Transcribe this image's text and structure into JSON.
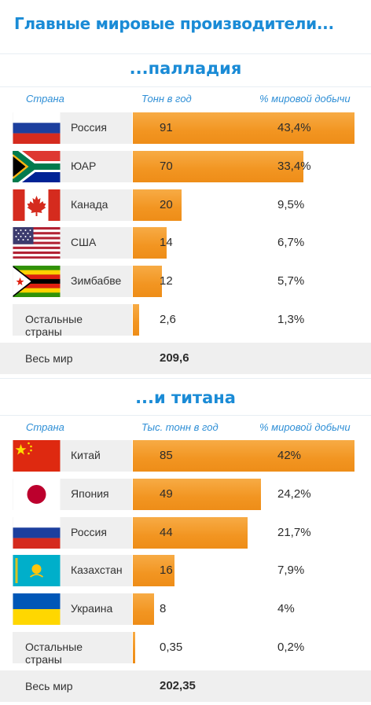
{
  "title": "Главные мировые производители...",
  "chart_data": [
    {
      "type": "table",
      "title": "...палладия",
      "columns": [
        "Страна",
        "Тонн в год",
        "% мировой добычи"
      ],
      "rows": [
        {
          "country": "Россия",
          "value": 91,
          "value_text": "91",
          "share": 43.4,
          "share_text": "43,4%",
          "flag": "flag-russia"
        },
        {
          "country": "ЮАР",
          "value": 70,
          "value_text": "70",
          "share": 33.4,
          "share_text": "33,4%",
          "flag": "flag-south-africa"
        },
        {
          "country": "Канада",
          "value": 20,
          "value_text": "20",
          "share": 9.5,
          "share_text": "9,5%",
          "flag": "flag-canada"
        },
        {
          "country": "США",
          "value": 14,
          "value_text": "14",
          "share": 6.7,
          "share_text": "6,7%",
          "flag": "flag-usa"
        },
        {
          "country": "Зимбабве",
          "value": 12,
          "value_text": "12",
          "share": 5.7,
          "share_text": "5,7%",
          "flag": "flag-zimbabwe"
        },
        {
          "country": "Остальные страны",
          "value": 2.6,
          "value_text": "2,6",
          "share": 1.3,
          "share_text": "1,3%",
          "flag": ""
        }
      ],
      "total_label": "Весь мир",
      "total_value": "209,6",
      "bar_max": 91,
      "bar_color": "#f29521"
    },
    {
      "type": "table",
      "title": "...и титана",
      "columns": [
        "Страна",
        "Тыс. тонн в год",
        "% мировой добычи"
      ],
      "rows": [
        {
          "country": "Китай",
          "value": 85,
          "value_text": "85",
          "share": 42,
          "share_text": "42%",
          "flag": "flag-china"
        },
        {
          "country": "Япония",
          "value": 49,
          "value_text": "49",
          "share": 24.2,
          "share_text": "24,2%",
          "flag": "flag-japan"
        },
        {
          "country": "Россия",
          "value": 44,
          "value_text": "44",
          "share": 21.7,
          "share_text": "21,7%",
          "flag": "flag-russia"
        },
        {
          "country": "Казахстан",
          "value": 16,
          "value_text": "16",
          "share": 7.9,
          "share_text": "7,9%",
          "flag": "flag-kazakhstan"
        },
        {
          "country": "Украина",
          "value": 8,
          "value_text": "8",
          "share": 4,
          "share_text": "4%",
          "flag": "flag-ukraine"
        },
        {
          "country": "Остальные страны",
          "value": 0.35,
          "value_text": "0,35",
          "share": 0.2,
          "share_text": "0,2%",
          "flag": ""
        }
      ],
      "total_label": "Весь мир",
      "total_value": "202,35",
      "bar_max": 85,
      "bar_color": "#f29521"
    }
  ]
}
